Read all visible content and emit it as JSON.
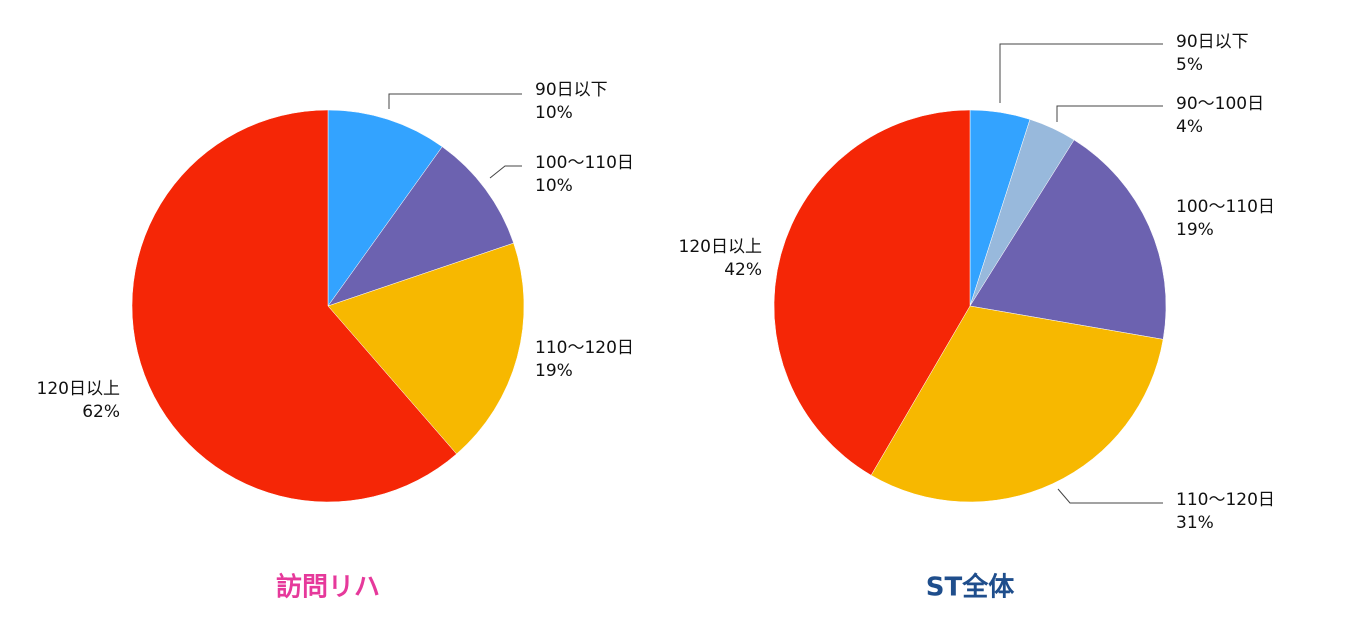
{
  "chart_data": [
    {
      "type": "pie",
      "title": "訪問リハ",
      "title_color": "#e6399b",
      "slices": [
        {
          "label": "90日以下",
          "value": 10,
          "value_label": "10%",
          "color": "#33a3ff"
        },
        {
          "label": "100〜110日",
          "value": 10,
          "value_label": "10%",
          "color": "#6c62b0"
        },
        {
          "label": "110〜120日",
          "value": 19,
          "value_label": "19%",
          "color": "#f7b800"
        },
        {
          "label": "120日以上",
          "value": 62,
          "value_label": "62%",
          "color": "#f52606"
        }
      ]
    },
    {
      "type": "pie",
      "title": "ST全体",
      "title_color": "#1f4e8c",
      "slices": [
        {
          "label": "90日以下",
          "value": 5,
          "value_label": "5%",
          "color": "#33a3ff"
        },
        {
          "label": "90〜100日",
          "value": 4,
          "value_label": "4%",
          "color": "#98b9dc"
        },
        {
          "label": "100〜110日",
          "value": 19,
          "value_label": "19%",
          "color": "#6c62b0"
        },
        {
          "label": "110〜120日",
          "value": 31,
          "value_label": "31%",
          "color": "#f7b800"
        },
        {
          "label": "120日以上",
          "value": 42,
          "value_label": "42%",
          "color": "#f52606"
        }
      ]
    }
  ]
}
